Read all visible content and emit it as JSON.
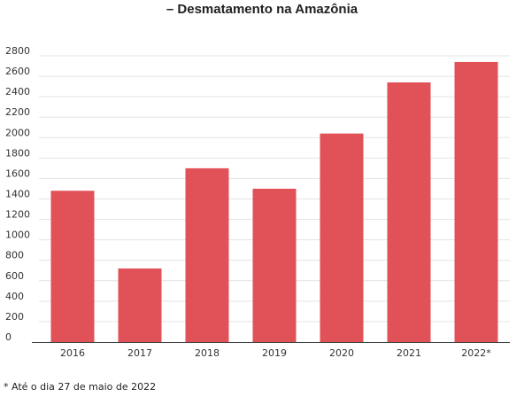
{
  "chart_data": {
    "type": "bar",
    "title": "– Desmatamento na Amazônia",
    "categories": [
      "2016",
      "2017",
      "2018",
      "2019",
      "2020",
      "2021",
      "2022*"
    ],
    "values": [
      1480,
      720,
      1700,
      1500,
      2040,
      2540,
      2740
    ],
    "y_ticks": [
      0,
      200,
      400,
      600,
      800,
      1000,
      1200,
      1400,
      1600,
      1800,
      2000,
      2200,
      2400,
      2600,
      2800
    ],
    "ylim": [
      0,
      2800
    ],
    "xlabel": "",
    "ylabel": "",
    "grid": true,
    "bar_color": "#e05257",
    "footnote": "* Até o dia 27 de maio de 2022"
  }
}
